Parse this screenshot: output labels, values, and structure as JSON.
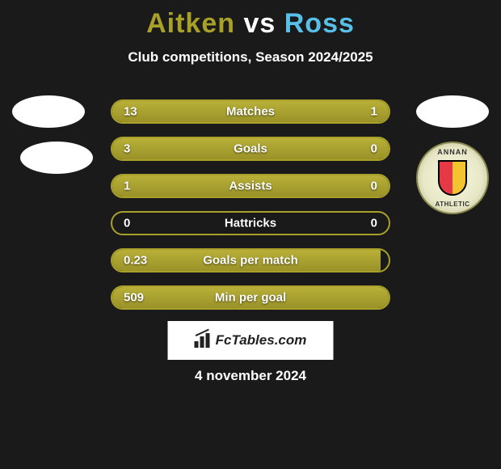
{
  "header": {
    "player1": "Aitken",
    "vs": "vs",
    "player2": "Ross",
    "subtitle": "Club competitions, Season 2024/2025",
    "player1_color": "#a8a028",
    "player2_color": "#58c0e8"
  },
  "badge": {
    "top_text": "ANNAN",
    "bottom_text": "ATHLETIC"
  },
  "bars": {
    "bar_border_color": "#a8a028",
    "bar_fill_color": "#a8a028",
    "text_color": "#ffffff",
    "rows": [
      {
        "label": "Matches",
        "left": "13",
        "right": "1",
        "left_pct": 76,
        "right_pct": 24
      },
      {
        "label": "Goals",
        "left": "3",
        "right": "0",
        "left_pct": 100,
        "right_pct": 0
      },
      {
        "label": "Assists",
        "left": "1",
        "right": "0",
        "left_pct": 100,
        "right_pct": 0
      },
      {
        "label": "Hattricks",
        "left": "0",
        "right": "0",
        "left_pct": 0,
        "right_pct": 0
      },
      {
        "label": "Goals per match",
        "left": "0.23",
        "right": "",
        "left_pct": 97,
        "right_pct": 0
      },
      {
        "label": "Min per goal",
        "left": "509",
        "right": "",
        "left_pct": 100,
        "right_pct": 0
      }
    ]
  },
  "brand": "FcTables.com",
  "date": "4 november 2024",
  "background_color": "#1a1a1a"
}
